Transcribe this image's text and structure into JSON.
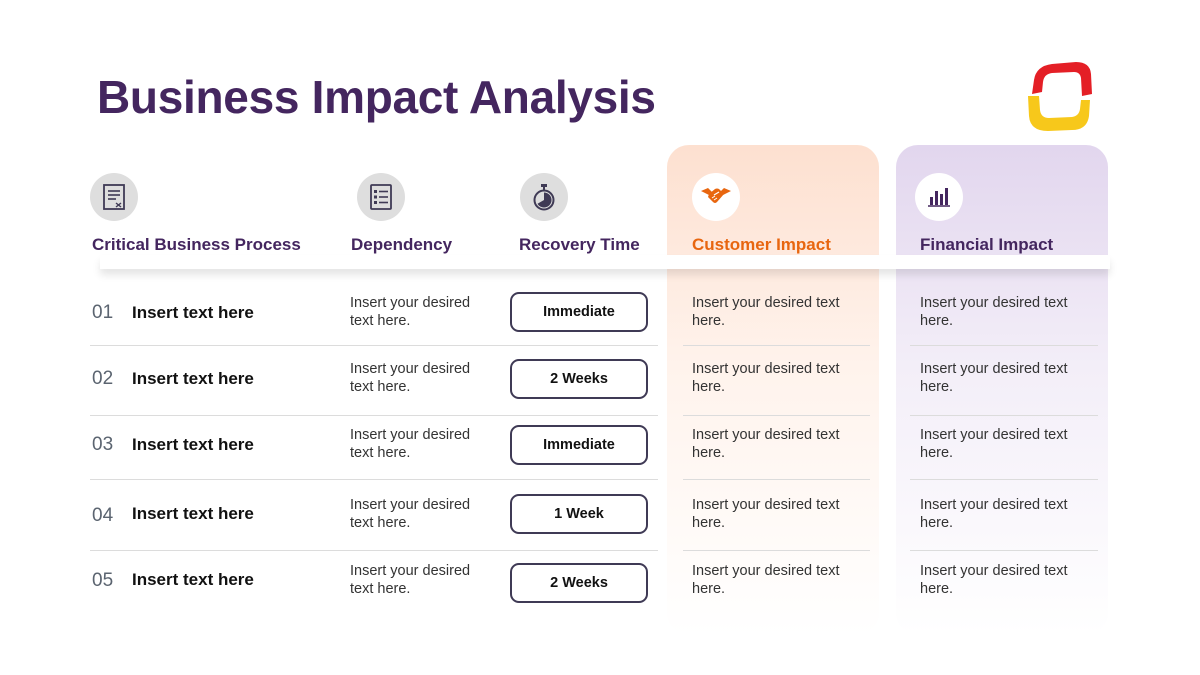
{
  "title": "Business Impact Analysis",
  "colors": {
    "title": "#44265f",
    "customer_accent": "#e8660f",
    "customer_bg": "#fde0d0",
    "financial_bg": "#e2d6ee",
    "icon_grey_bg": "#dedede",
    "logo_red": "#e41f26",
    "logo_yellow": "#f7c81b"
  },
  "headers": [
    {
      "label": "Critical Business Process",
      "icon": "document-icon"
    },
    {
      "label": "Dependency",
      "icon": "checklist-icon"
    },
    {
      "label": "Recovery Time",
      "icon": "stopwatch-icon"
    },
    {
      "label": "Customer Impact",
      "icon": "handshake-icon"
    },
    {
      "label": "Financial Impact",
      "icon": "bar-chart-icon"
    }
  ],
  "rows": [
    {
      "num": "01",
      "process": "Insert text here",
      "dependency": "Insert your desired text here.",
      "recovery": "Immediate",
      "customer": "Insert your desired text here.",
      "financial": "Insert your desired text here."
    },
    {
      "num": "02",
      "process": "Insert text here",
      "dependency": "Insert your desired text here.",
      "recovery": "2 Weeks",
      "customer": "Insert your desired text here.",
      "financial": "Insert your desired text here."
    },
    {
      "num": "03",
      "process": "Insert text here",
      "dependency": "Insert your desired text here.",
      "recovery": "Immediate",
      "customer": "Insert your desired text here.",
      "financial": "Insert your desired text here."
    },
    {
      "num": "04",
      "process": "Insert text here",
      "dependency": "Insert your desired text here.",
      "recovery": "1 Week",
      "customer": "Insert your desired text here.",
      "financial": "Insert your desired text here."
    },
    {
      "num": "05",
      "process": "Insert text here",
      "dependency": "Insert your desired text here.",
      "recovery": "2 Weeks",
      "customer": "Insert your desired text here.",
      "financial": "Insert your desired text here."
    }
  ]
}
